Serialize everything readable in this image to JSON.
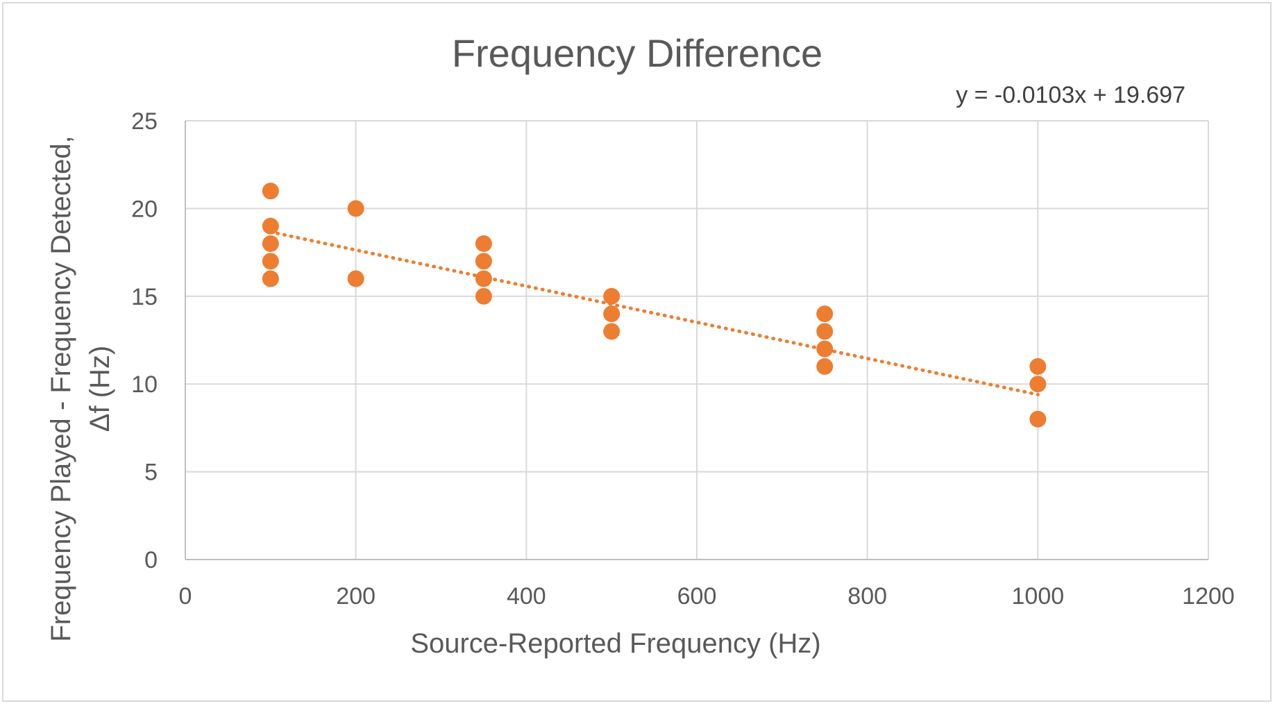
{
  "chart_data": {
    "type": "scatter",
    "title": "Frequency Difference",
    "xlabel": "Source-Reported Frequency (Hz)",
    "ylabel_lines": [
      "Frequency Played - Frequency Detected,",
      "Δf (Hz)"
    ],
    "xlim": [
      0,
      1200
    ],
    "ylim": [
      0,
      25
    ],
    "xticks": [
      0,
      200,
      400,
      600,
      800,
      1000,
      1200
    ],
    "yticks": [
      0,
      5,
      10,
      15,
      20,
      25
    ],
    "grid": true,
    "marker_color": "#ED7D31",
    "series": [
      {
        "x": [
          100,
          100,
          100,
          100,
          100,
          200,
          200,
          350,
          350,
          350,
          350,
          500,
          500,
          500,
          750,
          750,
          750,
          750,
          1000,
          1000,
          1000
        ],
        "y": [
          21,
          19,
          18,
          17,
          16,
          20,
          16,
          18,
          17,
          16,
          15,
          15,
          14,
          13,
          14,
          13,
          12,
          11,
          11,
          10,
          8
        ]
      }
    ],
    "trendline": {
      "type": "linear",
      "slope": -0.0103,
      "intercept": 19.697,
      "x_range": [
        100,
        1000
      ],
      "equation_label": "y = -0.0103x + 19.697",
      "color": "#ED7D31",
      "style": "dotted"
    }
  }
}
